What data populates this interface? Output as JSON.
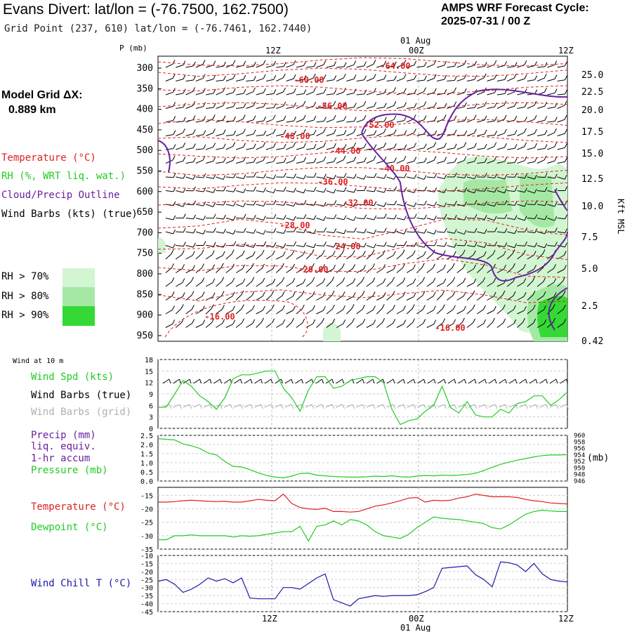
{
  "header": {
    "title": "Evans Divert:  lat/lon = (-76.7500, 162.7500)",
    "grid_point": "Grid Point (237, 610) lat/lon = (-76.7461, 162.7440)",
    "cycle_line1": "AMPS WRF Forecast Cycle:",
    "cycle_line2": "2025-07-31 / 00  Z",
    "model_grid_line1": "Model Grid ΔX:",
    "model_grid_line2": "0.889 km"
  },
  "legend_top": {
    "temperature": "Temperature (°C)",
    "rh": "RH (%, WRT liq. wat.)",
    "cloud": "Cloud/Precip Outline",
    "wind": "Wind Barbs (kts) (true)",
    "rh70": "RH > 70%",
    "rh80": "RH > 80%",
    "rh90": "RH > 90%"
  },
  "colors": {
    "temperature": "#e02020",
    "rh": "#22cc22",
    "cloud": "#6a1fa0",
    "rh70": "#d2f5d2",
    "rh80": "#a4e8a4",
    "rh90": "#35d935",
    "wind_grid": "#b0b0b0",
    "wind_chill": "#1a1aaa",
    "precip": "#6a1fa0"
  },
  "time_axis": {
    "top_ticks": [
      "12Z",
      "00Z",
      "12Z"
    ],
    "date_label": "01 Aug",
    "bottom_ticks": [
      "12Z",
      "00Z",
      "12Z"
    ]
  },
  "chart_data": [
    {
      "type": "heatmap",
      "description_ref": "cross-section",
      "ylabel": "P (mb)",
      "right_label": "Kft MSL",
      "pressure_ticks": [
        "300",
        "350",
        "400",
        "450",
        "500",
        "550",
        "600",
        "650",
        "700",
        "750",
        "800",
        "850",
        "900",
        "950"
      ],
      "height_ticks": [
        "25.0",
        "22.5",
        "20.0",
        "17.5",
        "15.0",
        "12.5",
        "10.0",
        "7.5",
        "5.0",
        "2.5",
        "0.42"
      ],
      "isotherm_labels": [
        "-64.00",
        "-60.00",
        "-56.00",
        "-52.00",
        "-48.00",
        "-44.00",
        "-40.00",
        "-36.00",
        "-32.00",
        "-28.00",
        "-24.00",
        "-20.00",
        "-16.00",
        "-16.00"
      ]
    },
    {
      "type": "line",
      "panel_title": "Wind at 10 m",
      "legend": [
        "Wind Spd (kts)",
        "Wind Barbs (true)",
        "Wind Barbs (grid)"
      ],
      "ylim": [
        0,
        18
      ],
      "y_ticks": [
        "18",
        "15",
        "12",
        "9",
        "6",
        "3",
        "0"
      ],
      "x_hours": [
        0,
        3,
        6,
        9,
        12,
        15,
        18,
        21,
        24,
        27,
        30,
        33,
        36,
        39,
        42,
        45,
        48,
        51,
        54,
        57,
        60,
        63,
        66,
        69,
        72,
        75,
        78,
        81,
        84,
        87,
        90,
        93,
        96,
        99,
        102,
        105,
        108,
        111,
        114,
        117,
        120,
        123,
        126,
        129,
        132,
        135,
        138,
        141,
        144,
        147
      ],
      "series": [
        {
          "name": "Wind Spd (kts)",
          "values": [
            5.5,
            5.6,
            9,
            12.5,
            11,
            8.5,
            7,
            5,
            8,
            13,
            14,
            14,
            14.5,
            15,
            15,
            10.5,
            8,
            4.5,
            10,
            13.5,
            13.5,
            10.5,
            11,
            12.5,
            13,
            13.5,
            13.5,
            12,
            5,
            1,
            2,
            2.5,
            4.5,
            6,
            11,
            5.5,
            4,
            7,
            3.5,
            3,
            3,
            5,
            4,
            6.5,
            7,
            8.5,
            8.5,
            6,
            7.5,
            9.5
          ]
        }
      ]
    },
    {
      "type": "line",
      "legend": [
        "Precip (mm)",
        "liq. equiv.",
        "1-hr accum",
        "Pressure (mb)"
      ],
      "left_ticks": [
        "2.5",
        "2.0",
        "1.5",
        "1.0",
        "0.5",
        "0.0"
      ],
      "right_ticks": [
        "960",
        "958",
        "956",
        "954",
        "952",
        "950",
        "948",
        "946"
      ],
      "right_label": "(mb)",
      "series": [
        {
          "name": "Pressure (mb)",
          "values": [
            959,
            958.8,
            958.6,
            957.4,
            956.8,
            956,
            954.6,
            954,
            952,
            950.5,
            950.3,
            949.5,
            948.5,
            947.7,
            947.2,
            947,
            947.5,
            948.3,
            948.4,
            947.8,
            947.6,
            947.4,
            947.3,
            947.2,
            947.2,
            947.3,
            947.5,
            947.4,
            947.6,
            947.3,
            947.2,
            947.5,
            947.7,
            947.6,
            947.8,
            947.7,
            947.8,
            948,
            948.4,
            949.2,
            950.2,
            951.1,
            951.8,
            952.4,
            952.9,
            953.4,
            953.8,
            954,
            954,
            954.1
          ]
        }
      ]
    },
    {
      "type": "line",
      "legend": [
        "Temperature (°C)",
        "Dewpoint (°C)"
      ],
      "y_ticks": [
        "-15",
        "-20",
        "-25",
        "-30",
        "-35"
      ],
      "ylim": [
        -35,
        -12
      ],
      "series": [
        {
          "name": "Temperature (°C)",
          "values": [
            -17.5,
            -17.5,
            -17.3,
            -17,
            -16.8,
            -17,
            -17.2,
            -17.3,
            -17.2,
            -17.5,
            -17.5,
            -17,
            -16.5,
            -16.8,
            -17,
            -14.5,
            -18,
            -19.5,
            -20,
            -20.2,
            -19.8,
            -21,
            -21,
            -21.2,
            -21,
            -20,
            -19,
            -18.5,
            -17.8,
            -17,
            -16,
            -15.8,
            -17.5,
            -16.8,
            -17,
            -16.8,
            -16,
            -15.5,
            -14.5,
            -15,
            -15.5,
            -15.5,
            -15.5,
            -15.8,
            -16.5,
            -17,
            -17.3,
            -17.8,
            -18,
            -18.2
          ]
        },
        {
          "name": "Dewpoint (°C)",
          "values": [
            -31.5,
            -31.5,
            -30,
            -30,
            -29.7,
            -30,
            -30,
            -30,
            -30,
            -30.5,
            -30,
            -30.2,
            -30,
            -29.5,
            -29,
            -28.5,
            -28.5,
            -26.5,
            -32,
            -26.5,
            -26,
            -24.5,
            -26,
            -24,
            -24.5,
            -26,
            -28.5,
            -30,
            -30.5,
            -31,
            -29.5,
            -27,
            -25,
            -23,
            -23.5,
            -23.8,
            -24,
            -24.5,
            -25,
            -25.5,
            -27,
            -27.5,
            -26,
            -24,
            -22,
            -21,
            -20.5,
            -20.8,
            -21,
            -21
          ]
        }
      ]
    },
    {
      "type": "line",
      "legend": [
        "Wind Chill T (°C)"
      ],
      "y_ticks": [
        "-10",
        "-15",
        "-20",
        "-25",
        "-30",
        "-35",
        "-40",
        "-45"
      ],
      "ylim": [
        -45,
        -10
      ],
      "series": [
        {
          "name": "Wind Chill T (°C)",
          "values": [
            -26,
            -25,
            -28,
            -33,
            -31,
            -28,
            -24,
            -26,
            -24.5,
            -27,
            -24,
            -36.5,
            -37,
            -37,
            -37,
            -30,
            -30,
            -31,
            -27.5,
            -24,
            -21.5,
            -37.5,
            -39.5,
            -41.5,
            -37,
            -36,
            -35,
            -35.5,
            -35,
            -35,
            -35,
            -34.5,
            -32.5,
            -30,
            -18,
            -17.5,
            -17,
            -16.5,
            -22,
            -25,
            -29.5,
            -14,
            -14.5,
            -16,
            -20,
            -15,
            -21.5,
            -25,
            -26,
            -26.5
          ]
        }
      ]
    }
  ]
}
